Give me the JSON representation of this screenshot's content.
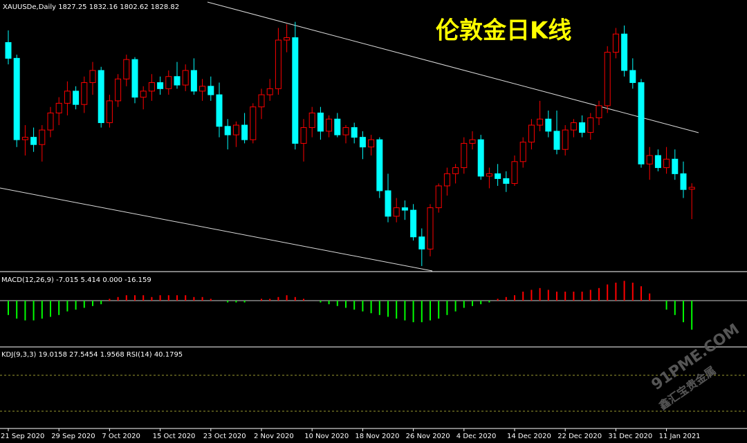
{
  "chart_data": {
    "type": "candlestick",
    "title": "伦敦金日K线",
    "header": "XAUUSDe,Daily  1827.25 1832.16 1802.62 1828.82",
    "macd_header": "MACD(12,26,9) -7.015 5.414 0.000 -16.159",
    "kdj_header": "KDJ(9,3,3) 19.0158 27.5454 1.9568  RSI(14) 40.1795",
    "watermark": "91PME.COM",
    "watermark_sub": "鑫汇宝贵金属",
    "up_color": "#ff0000",
    "down_color": "#00ffff",
    "ylim": [
      1760,
      1983
    ],
    "candles": [
      [
        1948,
        1958,
        1930,
        1935
      ],
      [
        1935,
        1938,
        1862,
        1868
      ],
      [
        1868,
        1880,
        1855,
        1870
      ],
      [
        1870,
        1878,
        1858,
        1864
      ],
      [
        1864,
        1880,
        1850,
        1876
      ],
      [
        1876,
        1895,
        1870,
        1890
      ],
      [
        1890,
        1903,
        1880,
        1898
      ],
      [
        1898,
        1916,
        1888,
        1908
      ],
      [
        1908,
        1912,
        1893,
        1897
      ],
      [
        1897,
        1920,
        1890,
        1915
      ],
      [
        1915,
        1932,
        1905,
        1925
      ],
      [
        1925,
        1928,
        1878,
        1882
      ],
      [
        1882,
        1905,
        1878,
        1900
      ],
      [
        1900,
        1922,
        1895,
        1918
      ],
      [
        1918,
        1938,
        1912,
        1934
      ],
      [
        1934,
        1936,
        1898,
        1903
      ],
      [
        1903,
        1912,
        1893,
        1908
      ],
      [
        1908,
        1922,
        1900,
        1915
      ],
      [
        1915,
        1920,
        1905,
        1910
      ],
      [
        1910,
        1925,
        1905,
        1920
      ],
      [
        1920,
        1932,
        1910,
        1913
      ],
      [
        1913,
        1930,
        1908,
        1925
      ],
      [
        1925,
        1935,
        1905,
        1908
      ],
      [
        1908,
        1918,
        1900,
        1912
      ],
      [
        1912,
        1920,
        1900,
        1905
      ],
      [
        1905,
        1915,
        1870,
        1879
      ],
      [
        1879,
        1885,
        1860,
        1872
      ],
      [
        1872,
        1883,
        1862,
        1880
      ],
      [
        1880,
        1890,
        1865,
        1868
      ],
      [
        1868,
        1898,
        1865,
        1895
      ],
      [
        1895,
        1910,
        1885,
        1905
      ],
      [
        1905,
        1918,
        1900,
        1910
      ],
      [
        1910,
        1960,
        1905,
        1950
      ],
      [
        1950,
        1963,
        1940,
        1952
      ],
      [
        1952,
        1965,
        1860,
        1865
      ],
      [
        1865,
        1885,
        1850,
        1878
      ],
      [
        1878,
        1895,
        1870,
        1890
      ],
      [
        1890,
        1895,
        1868,
        1875
      ],
      [
        1875,
        1888,
        1870,
        1885
      ],
      [
        1885,
        1890,
        1870,
        1872
      ],
      [
        1872,
        1880,
        1865,
        1878
      ],
      [
        1878,
        1882,
        1865,
        1870
      ],
      [
        1870,
        1875,
        1852,
        1862
      ],
      [
        1862,
        1872,
        1855,
        1868
      ],
      [
        1868,
        1870,
        1820,
        1826
      ],
      [
        1826,
        1840,
        1800,
        1805
      ],
      [
        1805,
        1820,
        1800,
        1812
      ],
      [
        1812,
        1818,
        1802,
        1810
      ],
      [
        1810,
        1815,
        1785,
        1788
      ],
      [
        1788,
        1795,
        1764,
        1778
      ],
      [
        1778,
        1815,
        1772,
        1812
      ],
      [
        1812,
        1832,
        1808,
        1830
      ],
      [
        1830,
        1845,
        1822,
        1840
      ],
      [
        1840,
        1848,
        1832,
        1845
      ],
      [
        1845,
        1870,
        1840,
        1865
      ],
      [
        1865,
        1875,
        1860,
        1868
      ],
      [
        1868,
        1872,
        1835,
        1838
      ],
      [
        1838,
        1845,
        1828,
        1840
      ],
      [
        1840,
        1848,
        1830,
        1836
      ],
      [
        1836,
        1842,
        1825,
        1832
      ],
      [
        1832,
        1855,
        1830,
        1850
      ],
      [
        1850,
        1870,
        1845,
        1866
      ],
      [
        1866,
        1885,
        1860,
        1880
      ],
      [
        1880,
        1900,
        1875,
        1885
      ],
      [
        1885,
        1892,
        1870,
        1875
      ],
      [
        1875,
        1892,
        1856,
        1860
      ],
      [
        1860,
        1880,
        1855,
        1876
      ],
      [
        1876,
        1885,
        1870,
        1882
      ],
      [
        1882,
        1888,
        1870,
        1874
      ],
      [
        1874,
        1890,
        1868,
        1886
      ],
      [
        1886,
        1900,
        1880,
        1896
      ],
      [
        1896,
        1945,
        1890,
        1940
      ],
      [
        1940,
        1960,
        1935,
        1955
      ],
      [
        1955,
        1962,
        1920,
        1925
      ],
      [
        1925,
        1935,
        1910,
        1915
      ],
      [
        1915,
        1918,
        1845,
        1848
      ],
      [
        1848,
        1862,
        1835,
        1855
      ],
      [
        1855,
        1860,
        1842,
        1845
      ],
      [
        1845,
        1862,
        1840,
        1852
      ],
      [
        1852,
        1860,
        1835,
        1840
      ],
      [
        1840,
        1850,
        1820,
        1827
      ],
      [
        1827.25,
        1832.16,
        1802.62,
        1828.82
      ]
    ],
    "macd_ylim": [
      -25,
      15
    ],
    "macd_histogram": [
      -8,
      -10,
      -11,
      -11,
      -10,
      -9,
      -8,
      -6,
      -5,
      -4,
      -3,
      -2,
      1,
      2,
      3,
      3,
      3,
      2,
      3,
      3,
      3,
      3,
      2,
      2,
      1,
      0,
      -1,
      -1,
      -1,
      0,
      1,
      1,
      2,
      3,
      2,
      1,
      0,
      -1,
      -2,
      -3,
      -4,
      -5,
      -6,
      -7,
      -8,
      -9,
      -10,
      -11,
      -12,
      -12,
      -11,
      -10,
      -8,
      -6,
      -4,
      -3,
      -2,
      -1,
      1,
      2,
      3,
      5,
      6,
      7,
      6,
      5,
      5,
      5,
      5,
      6,
      7,
      9,
      10,
      11,
      10,
      8,
      4,
      0,
      -5,
      -8,
      -12,
      -16.159
    ],
    "xticks": [
      {
        "value": 0,
        "label": "21 Sep 2020"
      },
      {
        "value": 6,
        "label": "29 Sep 2020"
      },
      {
        "value": 12,
        "label": "7 Oct 2020"
      },
      {
        "value": 18,
        "label": "15 Oct 2020"
      },
      {
        "value": 24,
        "label": "23 Oct 2020"
      },
      {
        "value": 30,
        "label": "2 Nov 2020"
      },
      {
        "value": 36,
        "label": "10 Nov 2020"
      },
      {
        "value": 42,
        "label": "18 Nov 2020"
      },
      {
        "value": 48,
        "label": "26 Nov 2020"
      },
      {
        "value": 54,
        "label": "4 Dec 2020"
      },
      {
        "value": 60,
        "label": "14 Dec 2020"
      },
      {
        "value": 66,
        "label": "22 Dec 2020"
      },
      {
        "value": 72,
        "label": "31 Dec 2020"
      },
      {
        "value": 78,
        "label": "11 Jan 2021"
      }
    ]
  }
}
